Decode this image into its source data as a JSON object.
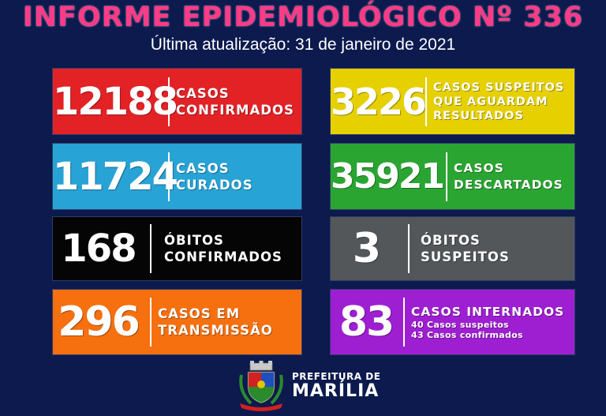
{
  "header": {
    "title": "INFORME EPIDEMIOLÓGICO Nº 336",
    "subtitle": "Última atualização: 31 de janeiro de 2021"
  },
  "colors": {
    "background": "#0c1a4e",
    "title": "#ff3a86",
    "red": "#e32226",
    "yellow": "#e6d000",
    "blue": "#27a3d6",
    "green": "#2aa532",
    "black": "#050505",
    "gray": "#53575a",
    "orange": "#f6700f",
    "purple": "#9e1fd1"
  },
  "cards": {
    "confirmados": {
      "value": "12188",
      "line1": "CASOS",
      "line2": "CONFIRMADOS"
    },
    "suspeitos": {
      "value": "3226",
      "line1": "CASOS SUSPEITOS",
      "line2": "QUE AGUARDAM",
      "line3": "RESULTADOS"
    },
    "curados": {
      "value": "11724",
      "line1": "CASOS",
      "line2": "CURADOS"
    },
    "descartados": {
      "value": "35921",
      "line1": "CASOS",
      "line2": "DESCARTADOS"
    },
    "obitos_confirmados": {
      "value": "168",
      "line1": "ÓBITOS",
      "line2": "CONFIRMADOS"
    },
    "obitos_suspeitos": {
      "value": "3",
      "line1": "ÓBITOS",
      "line2": "SUSPEITOS"
    },
    "transmissao": {
      "value": "296",
      "line1": "CASOS EM",
      "line2": "TRANSMISSÃO"
    },
    "internados": {
      "value": "83",
      "line1": "CASOS INTERNADOS",
      "sub1": "40 Casos suspeitos",
      "sub2": "43 Casos confirmados"
    }
  },
  "footer": {
    "line1": "PREFEITURA DE",
    "line2": "MARÍLIA",
    "crest_icon": "city-coat-of-arms-icon"
  }
}
